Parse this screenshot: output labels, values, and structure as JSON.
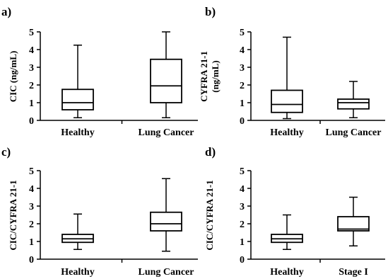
{
  "chart_data": [
    {
      "panel": "a)",
      "type": "box",
      "ylabel": "CIC (ng/mL)",
      "ylim": [
        0,
        5
      ],
      "yticks": [
        "0",
        "1",
        "2",
        "3",
        "4",
        "5"
      ],
      "categories": [
        "Healthy",
        "Lung Cancer"
      ],
      "boxes": [
        {
          "min": 0.15,
          "q1": 0.6,
          "median": 1.0,
          "q3": 1.75,
          "max": 4.25
        },
        {
          "min": 0.15,
          "q1": 1.0,
          "median": 1.95,
          "q3": 3.45,
          "max": 5.0
        }
      ]
    },
    {
      "panel": "b)",
      "type": "box",
      "ylabel": "CYFRA 21-1 (ng/mL)",
      "ylabel_lines": [
        "CYFRA 21-1",
        "(ng/mL)"
      ],
      "ylim": [
        0,
        5
      ],
      "yticks": [
        "0",
        "1",
        "2",
        "3",
        "4",
        "5"
      ],
      "categories": [
        "Healthy",
        "Lung Cancer"
      ],
      "boxes": [
        {
          "min": 0.1,
          "q1": 0.45,
          "median": 0.9,
          "q3": 1.7,
          "max": 4.7
        },
        {
          "min": 0.15,
          "q1": 0.65,
          "median": 1.0,
          "q3": 1.2,
          "max": 2.2
        }
      ]
    },
    {
      "panel": "c)",
      "type": "box",
      "ylabel": "CIC/CYFRA 21-1",
      "ylim": [
        0,
        5
      ],
      "yticks": [
        "0",
        "1",
        "2",
        "3",
        "4",
        "5"
      ],
      "categories": [
        "Healthy",
        "Lung Cancer"
      ],
      "boxes": [
        {
          "min": 0.55,
          "q1": 0.95,
          "median": 1.15,
          "q3": 1.4,
          "max": 2.55
        },
        {
          "min": 0.45,
          "q1": 1.6,
          "median": 2.0,
          "q3": 2.65,
          "max": 4.55
        }
      ]
    },
    {
      "panel": "d)",
      "type": "box",
      "ylabel": "CIC/CYFRA 21-1",
      "ylim": [
        0,
        5
      ],
      "yticks": [
        "0",
        "1",
        "2",
        "3",
        "4",
        "5"
      ],
      "categories": [
        "Healthy",
        "Stage I"
      ],
      "boxes": [
        {
          "min": 0.55,
          "q1": 0.95,
          "median": 1.15,
          "q3": 1.4,
          "max": 2.5
        },
        {
          "min": 0.75,
          "q1": 1.6,
          "median": 1.7,
          "q3": 2.4,
          "max": 3.5
        }
      ]
    }
  ]
}
